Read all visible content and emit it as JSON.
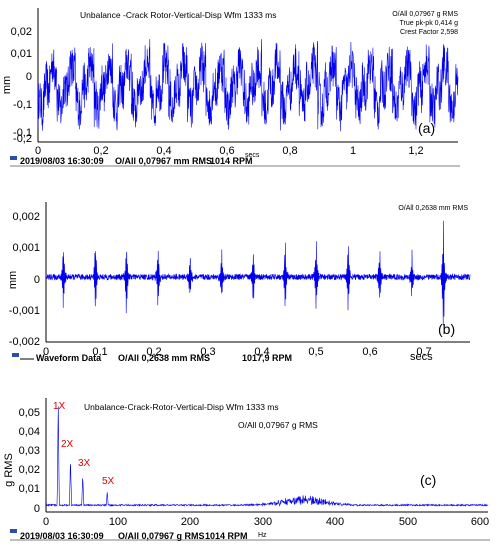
{
  "chart_data": [
    {
      "type": "line",
      "title": "Unbalance -Crack Rotor-Vertical-Disp Wfm 1333 ms",
      "info_lines": [
        "O/All 0,07967 g RMS",
        "True pk-pk 0,414 g",
        "Crest Factor 2,598"
      ],
      "ylabel": "mm",
      "xlabel": "secs",
      "panel_label": "(a)",
      "xlim": [
        0,
        1.333
      ],
      "ylim": [
        -0.2,
        0.025
      ],
      "y_ticks": [
        "0,02",
        "0,01",
        "0",
        "-0,1",
        "-0,1",
        "-0,2"
      ],
      "x_ticks": [
        "0",
        "0,2",
        "0,4",
        "0,6",
        "0,8",
        "1",
        "1,2"
      ],
      "footer": {
        "date": "2019/08/03 16:30:09",
        "overall": "O/All 0,07967 mm RMS",
        "speed": "1014 RPM"
      },
      "series": [
        {
          "color": "#0000ee",
          "pattern": "periodic_impulsive",
          "period_s": 0.0592
        }
      ]
    },
    {
      "type": "line",
      "title": "",
      "info_lines": [
        "O/All 0,2638 mm RMS"
      ],
      "ylabel": "mm",
      "xlabel": "secs",
      "panel_label": "(b)",
      "xlim": [
        0,
        0.78
      ],
      "ylim": [
        -0.002,
        0.0022
      ],
      "y_ticks": [
        "0,002",
        "0,001",
        "0",
        "-0,001",
        "-0,002"
      ],
      "x_ticks": [
        "0",
        "0,1",
        "0,2",
        "0,3",
        "0,4",
        "0,5",
        "0,6",
        "0,7"
      ],
      "footer": {
        "date": "Waveform Data",
        "overall": "O/All 0,2638 mm RMS",
        "speed": "1017,9 RPM"
      },
      "series": [
        {
          "color": "#0000ee",
          "pattern": "impulse_train",
          "impulse_times": [
            0.032,
            0.091,
            0.148,
            0.206,
            0.265,
            0.323,
            0.381,
            0.44,
            0.497,
            0.556,
            0.614,
            0.673,
            0.731
          ]
        }
      ]
    },
    {
      "type": "line",
      "title": "Unbalance-Crack-Rotor-Vertical-Disp Wfm 1333 ms",
      "info_lines": [
        "O/All 0,07967 g RMS"
      ],
      "ylabel": "g RMS",
      "xlabel": "Hz",
      "panel_label": "(c)",
      "xlim": [
        0,
        610
      ],
      "ylim": [
        0,
        0.058
      ],
      "y_ticks": [
        "0,05",
        "0,04",
        "0,03",
        "0,02",
        "0,01",
        "0"
      ],
      "x_ticks": [
        "0",
        "100",
        "200",
        "300",
        "400",
        "500",
        "600"
      ],
      "footer": {
        "date": "2019/08/03 16:30:09",
        "overall": "O/All 0,07967 g RMS",
        "speed": "1014 RPM"
      },
      "peaks": [
        {
          "label": "1X",
          "x": 16.9,
          "y": 0.057
        },
        {
          "label": "2X",
          "x": 33.8,
          "y": 0.026
        },
        {
          "label": "3X",
          "x": 50.7,
          "y": 0.017
        },
        {
          "label": "5X",
          "x": 84.5,
          "y": 0.008
        }
      ],
      "series": [
        {
          "color": "#0000ee",
          "pattern": "spectrum"
        }
      ]
    }
  ]
}
